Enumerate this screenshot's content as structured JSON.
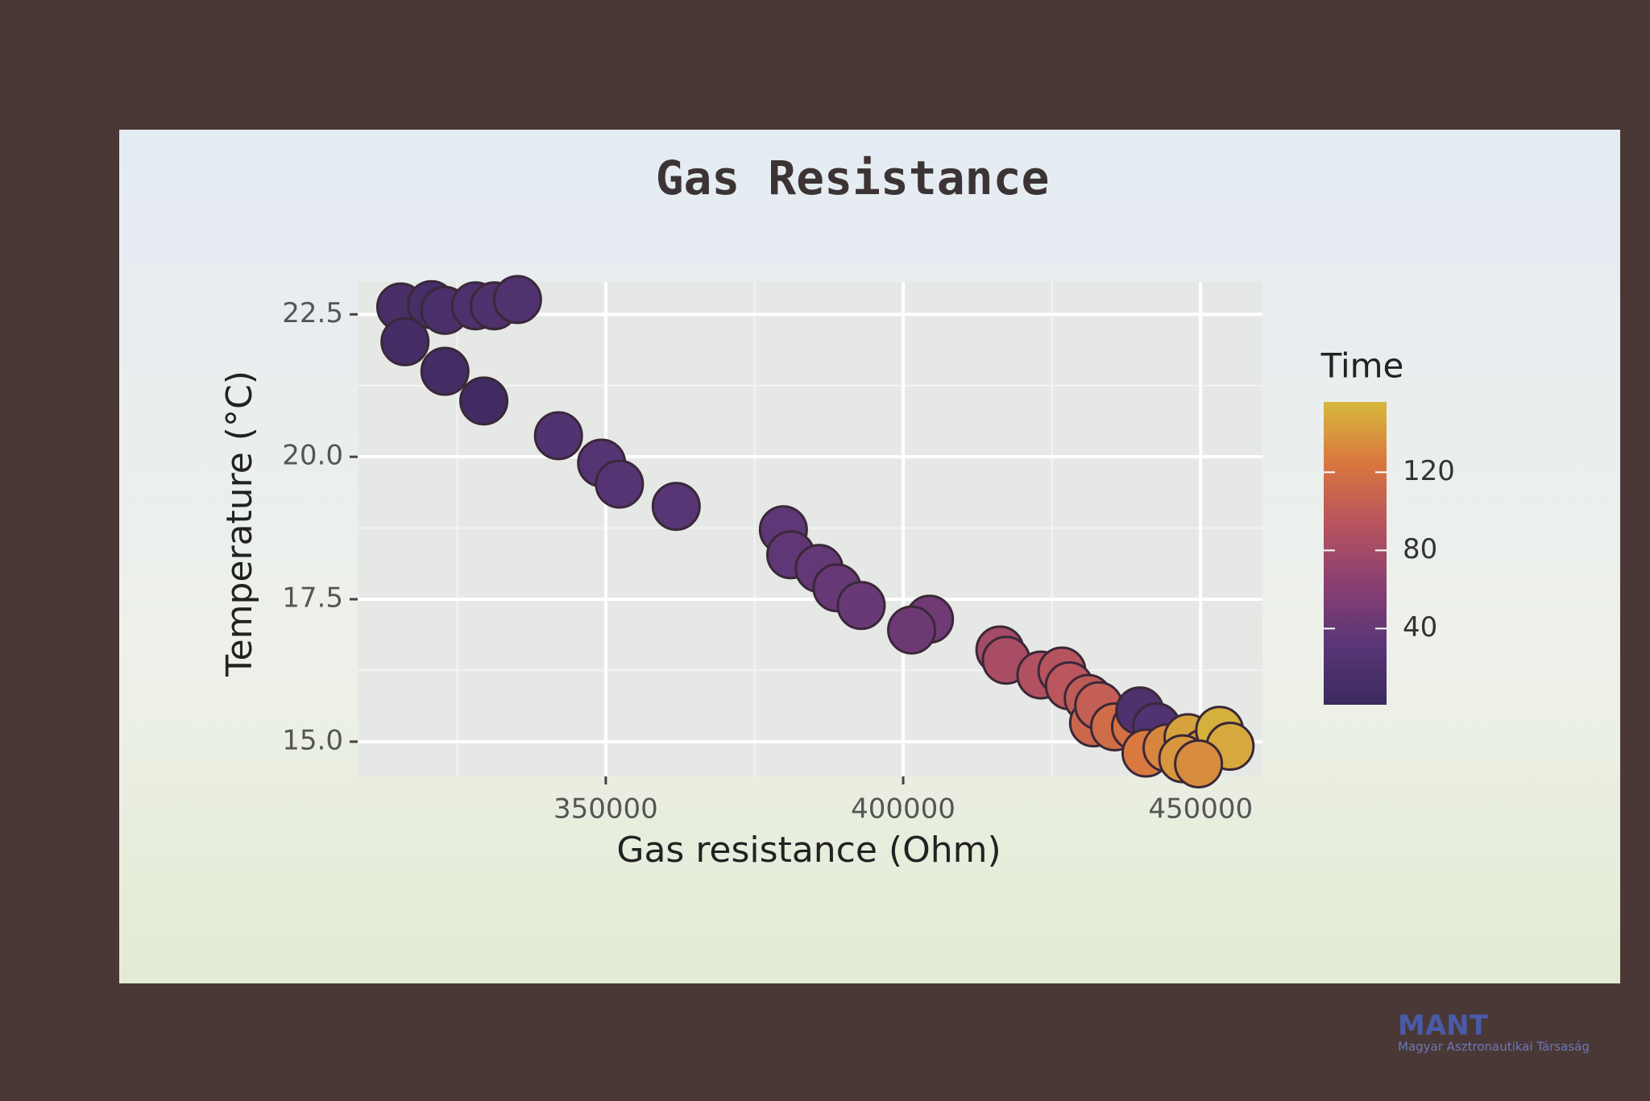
{
  "chart_data": {
    "type": "scatter",
    "title": "Gas Resistance",
    "x_label": "Gas resistance (Ohm)",
    "y_label": "Temperature (°C)",
    "x": [
      315540,
      320700,
      322960,
      328100,
      331270,
      335160,
      316250,
      322960,
      329500,
      342050,
      349300,
      352300,
      361840,
      379860,
      381100,
      385870,
      388870,
      392940,
      404420,
      401420,
      416260,
      417320,
      423150,
      426690,
      427930,
      431100,
      432000,
      432870,
      435530,
      439060,
      439770,
      442590,
      440820,
      444350,
      447880,
      450530,
      453190,
      454960,
      447000,
      449650
    ],
    "series": [
      {
        "values": [
          22.63,
          22.67,
          22.57,
          22.65,
          22.65,
          22.76,
          22.02,
          21.5,
          20.98,
          20.37,
          19.89,
          19.52,
          19.13,
          18.72,
          18.28,
          18.04,
          17.7,
          17.39,
          17.15,
          16.96,
          16.61,
          16.43,
          16.17,
          16.24,
          15.98,
          15.76,
          15.33,
          15.63,
          15.26,
          15.26,
          15.54,
          15.26,
          14.8,
          14.89,
          15.07,
          14.8,
          15.2,
          14.92,
          14.7,
          14.61
        ],
        "color_values": [
          14,
          12,
          16,
          18,
          20,
          22,
          10,
          8,
          6,
          24,
          26,
          28,
          30,
          34,
          36,
          38,
          40,
          42,
          46,
          44,
          80,
          84,
          90,
          92,
          96,
          100,
          112,
          104,
          116,
          120,
          20,
          24,
          126,
          132,
          145,
          138,
          152,
          148,
          140,
          135
        ]
      }
    ],
    "xlim": [
      308300,
      460400
    ],
    "ylim": [
      14.39,
      23.07
    ],
    "xticks": [
      350000,
      400000,
      450000
    ],
    "yticks": [
      {
        "value": 15,
        "label": "15.0"
      },
      17.5,
      {
        "value": 20,
        "label": "20.0"
      },
      22.5
    ],
    "xminor": [
      325000,
      375000,
      425000
    ],
    "yminor": [
      16.25,
      18.75,
      21.25
    ],
    "grid": true,
    "colorbar_title": "Time",
    "colorlim": [
      1,
      156
    ],
    "colorticks": [
      40,
      80,
      120
    ],
    "colormap": [
      "#3b2a5e",
      "#5a3677",
      "#8a3f72",
      "#b8545e",
      "#d9773f",
      "#d6b93c"
    ],
    "marker_edge_color": "#3a2838",
    "watermark": {
      "name": "MANT",
      "subtitle": "Magyar Asztronautikai Társaság"
    }
  }
}
